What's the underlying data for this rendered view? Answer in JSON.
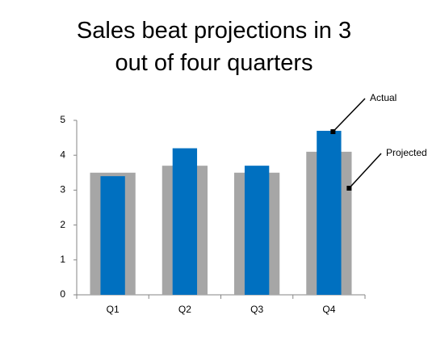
{
  "chart_data": {
    "type": "bar",
    "title": "Sales beat projections in 3 out of four quarters",
    "categories": [
      "Q1",
      "Q2",
      "Q3",
      "Q4"
    ],
    "series": [
      {
        "name": "Projected",
        "color": "#a6a6a6",
        "values": [
          3.5,
          3.7,
          3.5,
          4.1
        ]
      },
      {
        "name": "Actual",
        "color": "#0070c0",
        "values": [
          3.4,
          4.2,
          3.7,
          4.7
        ]
      }
    ],
    "ylim": [
      0,
      5
    ],
    "yticks": [
      0,
      1,
      2,
      3,
      4,
      5
    ],
    "grid": false
  }
}
